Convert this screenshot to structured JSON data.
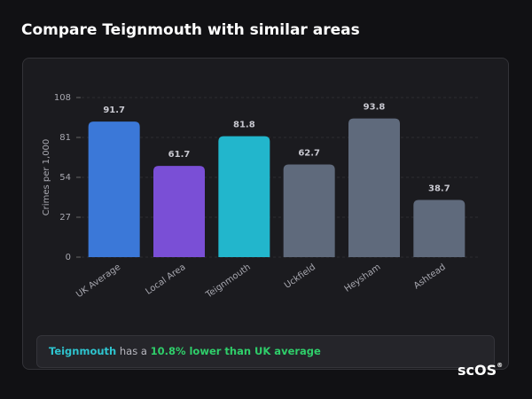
{
  "chart_data": {
    "type": "bar",
    "title": "Compare Teignmouth with similar areas",
    "y_label": "Crimes per 1,000",
    "categories": [
      "UK Average",
      "Local Area",
      "Teignmouth",
      "Uckfield",
      "Heysham",
      "Ashtead"
    ],
    "values": [
      91.7,
      61.7,
      81.8,
      62.7,
      93.8,
      38.7
    ],
    "colors": [
      "#3b78d8",
      "#7a4fd6",
      "#22b6cc",
      "#5f6a7c",
      "#5f6a7c",
      "#5f6a7c"
    ],
    "ylim": [
      0,
      108
    ],
    "yticks": [
      0,
      27,
      54,
      81,
      108
    ],
    "grid": true
  },
  "insight": {
    "area": "Teignmouth",
    "middle": "has a",
    "highlight": "10.8% lower than UK average"
  },
  "logo": {
    "text": "scOS",
    "mark": "®"
  }
}
